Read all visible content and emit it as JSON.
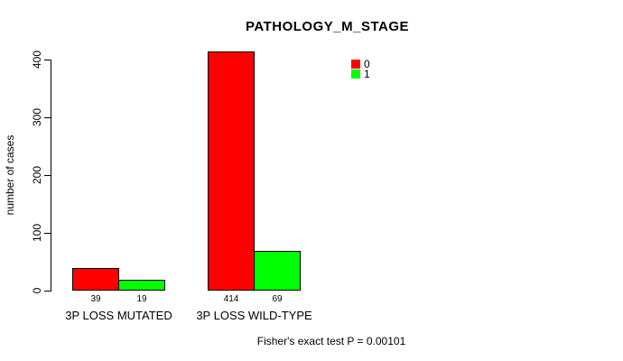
{
  "chart_data": {
    "type": "bar",
    "title": "PATHOLOGY_M_STAGE",
    "categories": [
      "3P LOSS MUTATED",
      "3P LOSS WILD-TYPE"
    ],
    "series": [
      {
        "name": "0",
        "color": "#ff0000",
        "values": [
          39,
          414
        ]
      },
      {
        "name": "1",
        "color": "#00ff00",
        "values": [
          19,
          69
        ]
      }
    ],
    "xlabel": "",
    "ylabel": "number of cases",
    "ylim": [
      0,
      400
    ],
    "yticks": [
      0,
      100,
      200,
      300,
      400
    ],
    "grid": false,
    "bar_border_color": "#000000",
    "value_labels_shown": true,
    "legend": {
      "position": "inside-top-center-right",
      "entries": [
        {
          "label": "0",
          "color": "#ff0000"
        },
        {
          "label": "1",
          "color": "#00ff00"
        }
      ]
    },
    "annotation": "Fisher's exact test P = 0.00101"
  }
}
